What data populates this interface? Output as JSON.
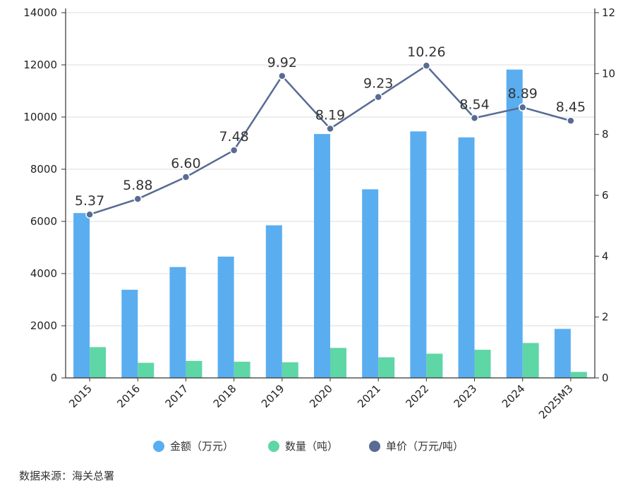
{
  "chart_data": {
    "type": "bar+line",
    "categories": [
      "2015",
      "2016",
      "2017",
      "2018",
      "2019",
      "2020",
      "2021",
      "2022",
      "2023",
      "2024",
      "2025M3"
    ],
    "series": [
      {
        "name": "金额（万元）",
        "axis": "left",
        "type": "bar",
        "color": "#5aaef0",
        "values": [
          6320,
          3380,
          4250,
          4650,
          5850,
          9350,
          7230,
          9450,
          9220,
          11820,
          1880
        ]
      },
      {
        "name": "数量（吨）",
        "axis": "left",
        "type": "bar",
        "color": "#5fd6a6",
        "values": [
          1180,
          580,
          650,
          620,
          600,
          1150,
          790,
          930,
          1080,
          1340,
          230
        ]
      },
      {
        "name": "单价（万元/吨）",
        "axis": "right",
        "type": "line",
        "color": "#576b93",
        "values": [
          5.37,
          5.88,
          6.6,
          7.48,
          9.92,
          8.19,
          9.23,
          10.26,
          8.54,
          8.89,
          8.45
        ],
        "labels": [
          "5.37",
          "5.88",
          "6.60",
          "7.48",
          "9.92",
          "8.19",
          "9.23",
          "10.26",
          "8.54",
          "8.89",
          "8.45"
        ]
      }
    ],
    "y_left": {
      "min": 0,
      "max": 14000,
      "ticks": [
        "0",
        "2000",
        "4000",
        "6000",
        "8000",
        "10000",
        "12000",
        "14000"
      ]
    },
    "y_right": {
      "min": 0,
      "max": 12,
      "ticks": [
        "0",
        "2",
        "4",
        "6",
        "8",
        "10",
        "12"
      ]
    },
    "grid": true,
    "legend_position": "bottom"
  },
  "source_note": "数据来源：海关总署"
}
